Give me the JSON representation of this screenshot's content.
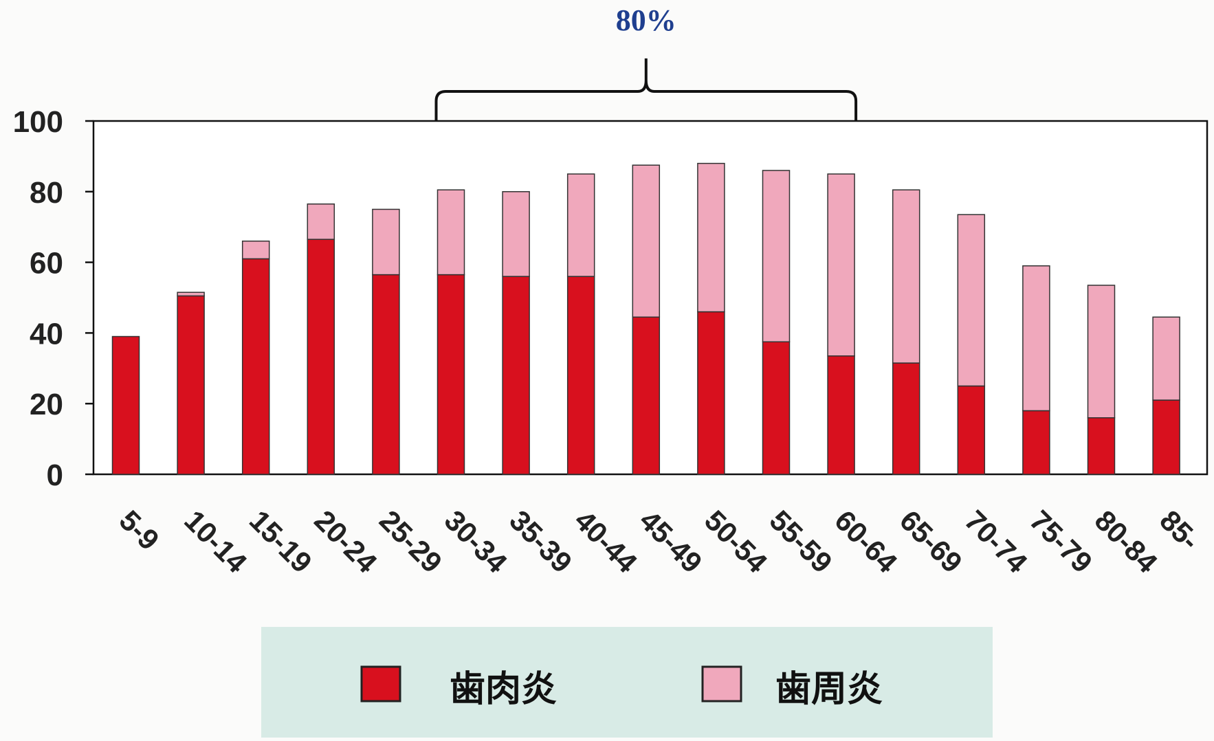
{
  "chart_data": {
    "type": "bar",
    "stacked": true,
    "categories": [
      "5-9",
      "10-14",
      "15-19",
      "20-24",
      "25-29",
      "30-34",
      "35-39",
      "40-44",
      "45-49",
      "50-54",
      "55-59",
      "60-64",
      "65-69",
      "70-74",
      "75-79",
      "80-84",
      "85-"
    ],
    "series": [
      {
        "name": "歯肉炎",
        "color": "#d8101e",
        "values": [
          39,
          50.5,
          61,
          66.5,
          56.5,
          56.5,
          56,
          56,
          44.5,
          46,
          37.5,
          33.5,
          31.5,
          25,
          18,
          16,
          21
        ]
      },
      {
        "name": "歯周炎",
        "color": "#f0a8bc",
        "values": [
          0,
          1,
          5,
          10,
          18.5,
          24,
          24,
          29,
          43,
          42,
          48.5,
          51.5,
          49,
          48.5,
          41,
          37.5,
          23.5
        ]
      }
    ],
    "ylim": [
      0,
      100
    ],
    "yticks": [
      "0",
      "20",
      "40",
      "60",
      "80",
      "100"
    ],
    "grid": false,
    "legend_position": "bottom",
    "annotation": {
      "text": "80%",
      "from_category": "30-34",
      "to_category": "60-64"
    }
  },
  "colors": {
    "annotation_text": "#1f3f8f",
    "legend_background": "#d8ebe6",
    "axis": "#111111"
  }
}
